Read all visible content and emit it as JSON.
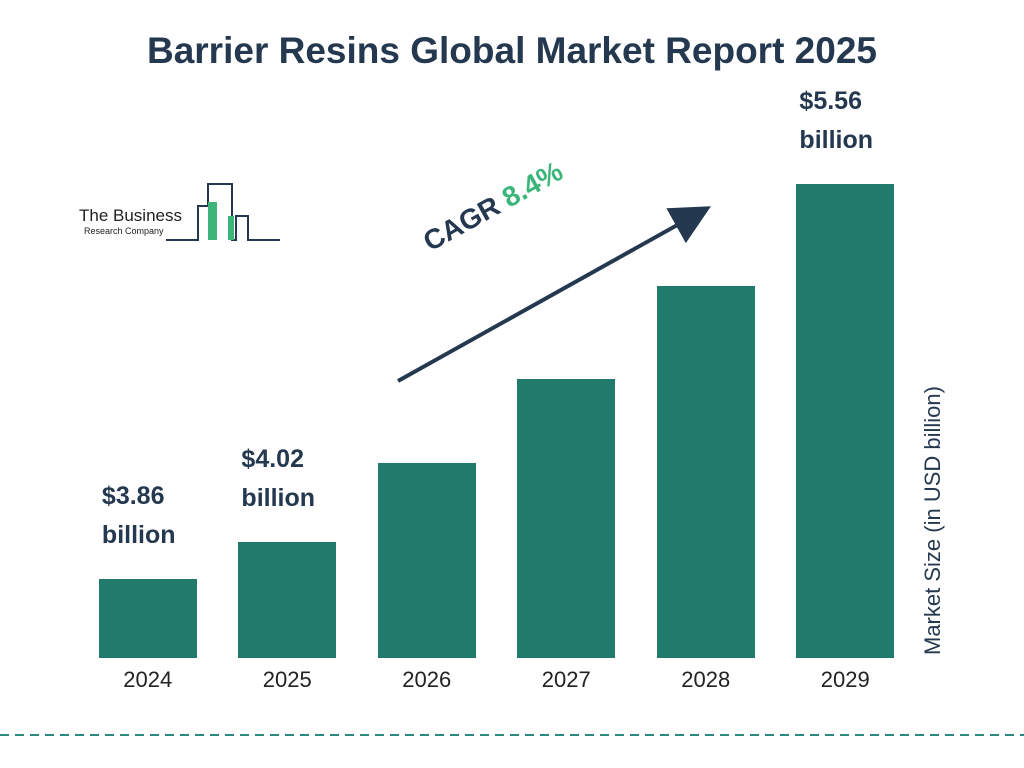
{
  "chart_data": {
    "type": "bar",
    "title": "Barrier Resins Global Market Report 2025",
    "categories": [
      "2024",
      "2025",
      "2026",
      "2027",
      "2028",
      "2029"
    ],
    "values": [
      3.86,
      4.02,
      4.36,
      4.72,
      5.12,
      5.56
    ],
    "value_labels": [
      "$3.86 billion",
      "$4.02 billion",
      null,
      null,
      null,
      "$5.56 billion"
    ],
    "color": "#217b6c",
    "ylim": [
      3.52,
      5.56
    ],
    "y_label": "Market Size (in USD billion)",
    "cagr": {
      "label": "CAGR",
      "value": "8.4%"
    },
    "logo": {
      "line1": "The Business",
      "line2": "Research Company"
    }
  }
}
